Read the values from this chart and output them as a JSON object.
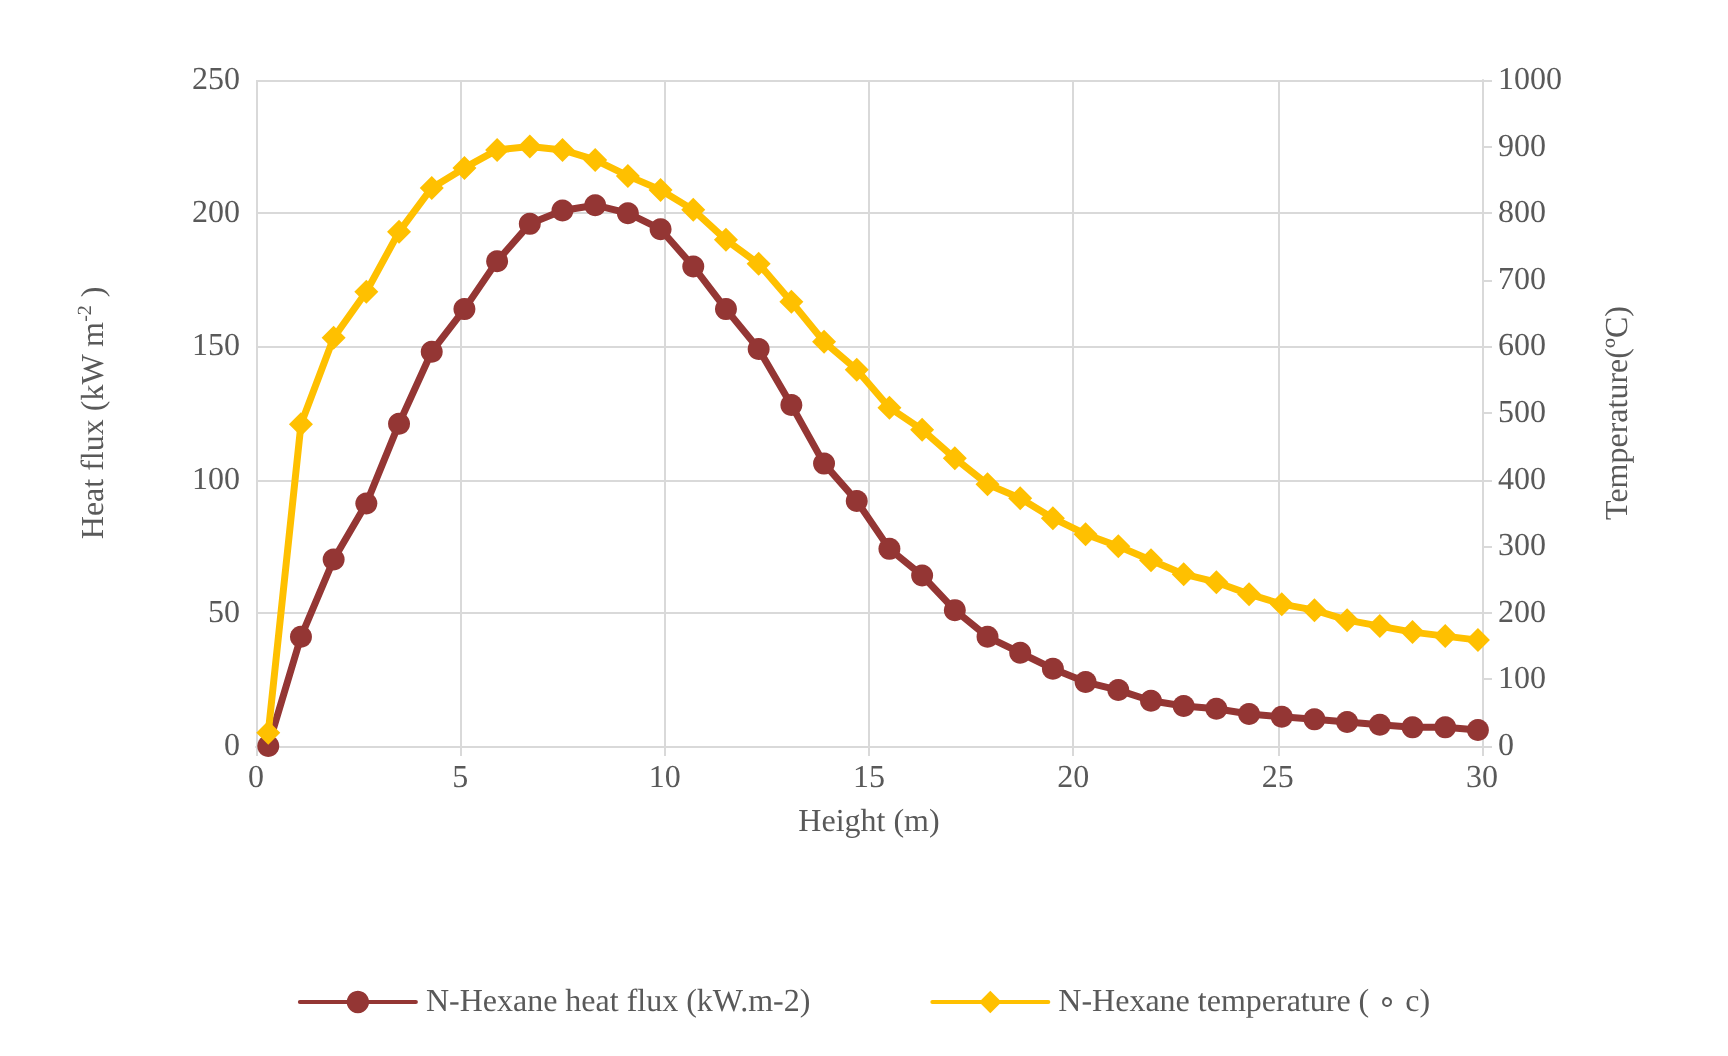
{
  "chart_data": {
    "type": "line",
    "xlabel": "Height (m)",
    "ylabel": "Heat flux (kW m$^{-2}$ )",
    "y2label": "Temperature(ºC)",
    "x": [
      0.3,
      1.1,
      1.9,
      2.7,
      3.5,
      4.3,
      5.1,
      5.9,
      6.7,
      7.5,
      8.3,
      9.1,
      9.9,
      10.7,
      11.5,
      12.3,
      13.1,
      13.9,
      14.7,
      15.5,
      16.3,
      17.1,
      17.9,
      18.7,
      19.5,
      20.3,
      21.1,
      21.9,
      22.7,
      23.5,
      24.3,
      25.1,
      25.9,
      26.7,
      27.5,
      28.3,
      29.1,
      29.9
    ],
    "series": [
      {
        "name": "N-Hexane heat flux (kW.m-2)",
        "color": "#943634",
        "marker": "circle",
        "values": [
          0,
          41,
          70,
          91,
          121,
          148,
          164,
          182,
          196,
          201,
          203,
          200,
          194,
          180,
          164,
          149,
          128,
          106,
          92,
          74,
          64,
          51,
          41,
          35,
          29,
          24,
          21,
          17,
          15,
          14,
          12,
          11,
          10,
          9,
          8,
          7,
          7,
          6
        ]
      },
      {
        "name": "N-Hexane temperature ( ∘ c)",
        "color": "#ffc000",
        "marker": "diamond",
        "axis": "y2",
        "values": [
          20,
          483,
          613,
          682,
          772,
          838,
          868,
          895,
          900,
          895,
          880,
          856,
          835,
          805,
          760,
          724,
          667,
          607,
          565,
          508,
          475,
          432,
          393,
          372,
          342,
          318,
          300,
          279,
          258,
          246,
          228,
          213,
          204,
          189,
          180,
          171,
          165,
          159
        ]
      }
    ],
    "xlim": [
      0,
      30
    ],
    "xticks": [
      0,
      5,
      10,
      15,
      20,
      25,
      30
    ],
    "ylim": [
      0,
      250
    ],
    "yticks": [
      0,
      50,
      100,
      150,
      200,
      250
    ],
    "y2lim": [
      0,
      1000
    ],
    "y2ticks": [
      0,
      100,
      200,
      300,
      400,
      500,
      600,
      700,
      800,
      900,
      1000
    ],
    "grid": true,
    "legend": "bottom",
    "line_style": "solid"
  }
}
